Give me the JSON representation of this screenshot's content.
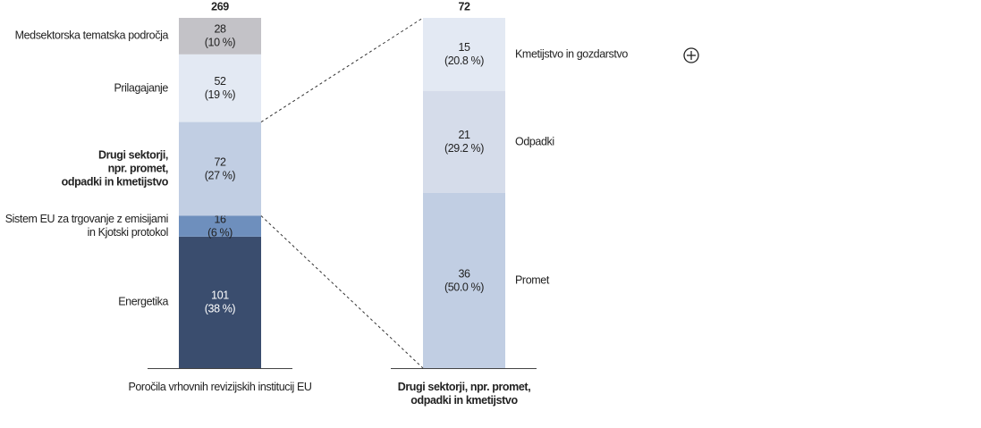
{
  "chart_data": {
    "type": "bar-of-bar",
    "exploded_segment": 2,
    "bars": [
      {
        "name": "Poročila vrhovnih revizijskih institucij EU",
        "total": 269,
        "categories": [
          "Energetika",
          "Sistem EU za trgovanje z emisijami\nin Kjotski protokol",
          "Drugi sektorji,\nnpr. promet,\nodpadki in kmetijstvo",
          "Prilagajanje",
          "Medsektorska tematska področja"
        ],
        "values": [
          101,
          16,
          72,
          52,
          28
        ],
        "percent_labels": [
          "(38 %)",
          "(6 %)",
          "(27 %)",
          "(19 %)",
          "(10 %)"
        ],
        "colors": [
          "#3a4d6e",
          "#6e8fbd",
          "#c1cee3",
          "#e3e9f3",
          "#c3c2c7"
        ]
      },
      {
        "name": "Drugi sektorji, npr. promet,\nodpadki in kmetijstvo",
        "total": 72,
        "categories": [
          "Promet",
          "Odpadki",
          "Kmetijstvo in gozdarstvo"
        ],
        "values": [
          36,
          21,
          15
        ],
        "percent_labels": [
          "(50.0 %)",
          "(29.2 %)",
          "(20.8 %)"
        ],
        "colors": [
          "#c1cee3",
          "#d5dcea",
          "#e3e9f3"
        ]
      }
    ]
  }
}
